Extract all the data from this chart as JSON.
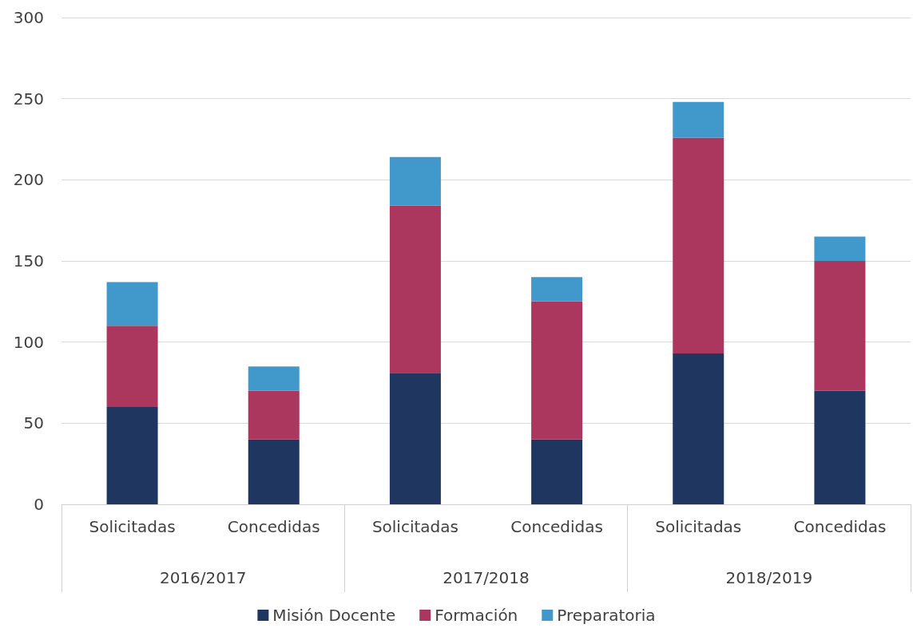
{
  "chart_data": {
    "type": "bar",
    "stacked": true,
    "categories": [
      "Solicitadas",
      "Concedidas",
      "Solicitadas",
      "Concedidas",
      "Solicitadas",
      "Concedidas"
    ],
    "annotations": [
      "2016/2017",
      "2017/2018",
      "2018/2019"
    ],
    "series": [
      {
        "name": "Misión Docente",
        "color": "#1f3760",
        "values": [
          60,
          40,
          81,
          40,
          93,
          70
        ]
      },
      {
        "name": "Formación",
        "color": "#ab365e",
        "values": [
          50,
          30,
          103,
          85,
          133,
          80
        ]
      },
      {
        "name": "Preparatoria",
        "color": "#4199cb",
        "values": [
          27,
          15,
          30,
          15,
          22,
          15
        ]
      }
    ],
    "ylim": [
      0,
      300
    ],
    "yticks": [
      0,
      50,
      100,
      150,
      200,
      250,
      300
    ],
    "grid": "y",
    "legend": "bottom"
  }
}
